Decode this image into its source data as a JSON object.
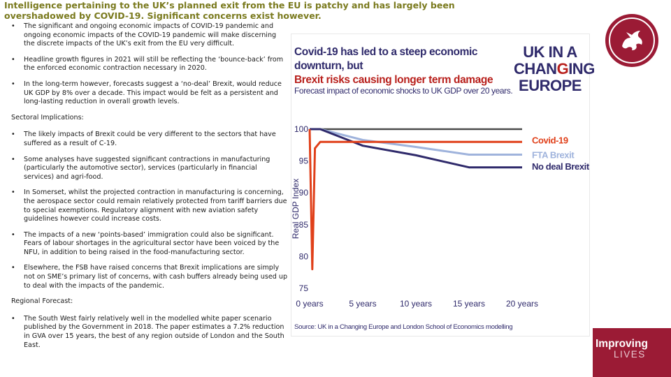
{
  "slide": {
    "title": "Intelligence pertaining to the UK’s planned exit from the EU is patchy and has largely been overshadowed by COVID-19. Significant concerns exist however.",
    "bullets_top": [
      "The significant and ongoing economic impacts of COVID-19 pandemic and ongoing economic impacts of the COVID-19 pandemic will make discerning the discrete impacts of the UK’s exit from the EU very difficult.",
      "Headline growth figures in 2021 will still be reflecting the ‘bounce-back’ from the enforced economic contraction necessary in 2020.",
      "In the long-term however, forecasts suggest a ‘no-deal’ Brexit, would reduce UK GDP by 8% over a decade. This impact would be felt as a persistent and long-lasting reduction in overall growth levels."
    ],
    "sectoral_heading": "Sectoral Implications:",
    "bullets_sectoral": [
      "The likely impacts of Brexit could be very different to the sectors that have suffered as a result of C-19.",
      "Some analyses have suggested significant contractions in manufacturing (particularly the automotive sector), services (particularly in financial services) and agri-food.",
      "In Somerset, whilst the projected contraction in manufacturing is concerning, the aerospace sector could remain relatively protected from tariff barriers due to special exemptions. Regulatory alignment with new aviation safety guidelines however could increase costs.",
      "The impacts of a new ‘points-based’ immigration could also be significant. Fears of labour shortages in the agricultural sector have been voiced by the NFU, in addition to being raised in the food-manufacturing sector.",
      "Elsewhere, the FSB have raised concerns that Brexit implications are simply not on SME’s primary list of concerns, with cash buffers already being used up to deal with the impacts of the pandemic."
    ],
    "regional_heading": "Regional Forecast:",
    "bullets_regional": [
      "The South West fairly relatively well in the modelled white paper scenario published by the Government in 2018. The paper estimates a 7.2% reduction in GVA over 15 years, the best of any region outside of London and the South East."
    ]
  },
  "figure": {
    "headline_line1": "Covid-19 has led to a steep economic downturn, but",
    "headline_line2": "Brexit risks causing longer term damage",
    "subtitle": "Forecast impact of economic shocks to UK GDP over 20 years.",
    "logo_line1": "UK IN A",
    "logo_line2_pre": "CHAN",
    "logo_line2_hl": "G",
    "logo_line2_post": "ING",
    "logo_line3": "EUROPE",
    "source": "Source: UK in a Changing Europe and London School of Economics modelling"
  },
  "chart_data": {
    "type": "line",
    "title": "Forecast impact of economic shocks to UK GDP over 20 years.",
    "xlabel": "",
    "ylabel": "Real GDP Index",
    "x": [
      0,
      0.25,
      0.5,
      1,
      5,
      10,
      15,
      20
    ],
    "x_ticks": [
      0,
      5,
      10,
      15,
      20
    ],
    "x_tick_labels": [
      "0 years",
      "5 years",
      "10 years",
      "15 years",
      "20 years"
    ],
    "y_ticks": [
      75,
      80,
      85,
      90,
      95,
      100
    ],
    "y_tick_labels": [
      "75",
      "80",
      "85",
      "90",
      "95",
      "100"
    ],
    "ylim": [
      75,
      100
    ],
    "xlim": [
      0,
      20
    ],
    "grid": false,
    "series": [
      {
        "name": "Covid-19",
        "color": "#e0401a",
        "values": [
          100,
          78,
          97,
          98,
          98,
          98,
          98,
          98
        ]
      },
      {
        "name": "FTA Brexit",
        "color": "#9fb3dc",
        "values": [
          100,
          100,
          100,
          100,
          98.3,
          97.2,
          96,
          96
        ]
      },
      {
        "name": "No deal Brexit",
        "color": "#2f2a6b",
        "values": [
          100,
          100,
          100,
          100,
          97.4,
          95.9,
          94,
          94
        ]
      }
    ],
    "baseline": {
      "name": "Baseline",
      "color": "#4a4a4a",
      "values": [
        100,
        100,
        100,
        100,
        100,
        100,
        100,
        100
      ]
    }
  },
  "branding": {
    "emblem_name": "wyvern-emblem",
    "corner_line1": "Improving",
    "corner_line2": "LIVES",
    "brand_color": "#9b1b35"
  }
}
